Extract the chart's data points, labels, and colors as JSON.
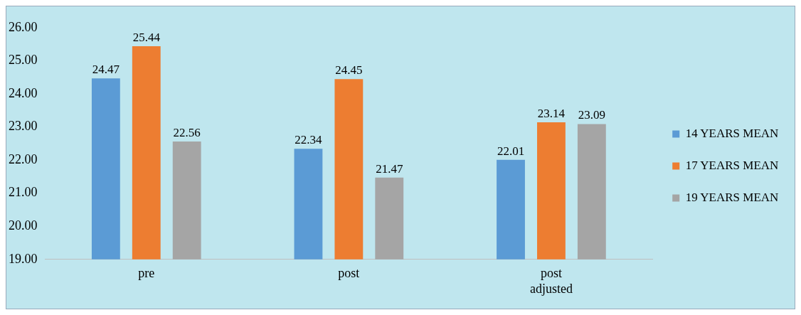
{
  "chart_data": {
    "type": "bar",
    "categories": [
      "pre",
      "post",
      "post adjusted"
    ],
    "series": [
      {
        "name": "14 YEARS MEAN",
        "color": "#5b9bd5",
        "values": [
          24.47,
          22.34,
          22.01
        ]
      },
      {
        "name": "17 YEARS MEAN",
        "color": "#ed7d31",
        "values": [
          25.44,
          24.45,
          23.14
        ]
      },
      {
        "name": "19 YEARS MEAN",
        "color": "#a5a5a5",
        "values": [
          22.56,
          21.47,
          23.09
        ]
      }
    ],
    "ylim": [
      19,
      26
    ],
    "yticks": [
      {
        "value": 19,
        "label": "19.00"
      },
      {
        "value": 20,
        "label": "20.00"
      },
      {
        "value": 21,
        "label": "21.00"
      },
      {
        "value": 22,
        "label": "22.00"
      },
      {
        "value": 23,
        "label": "23.00"
      },
      {
        "value": 24,
        "label": "24.00"
      },
      {
        "value": 25,
        "label": "25.00"
      },
      {
        "value": 26,
        "label": "26.00"
      }
    ],
    "grid": false,
    "legend": "right",
    "data_labels": true
  }
}
